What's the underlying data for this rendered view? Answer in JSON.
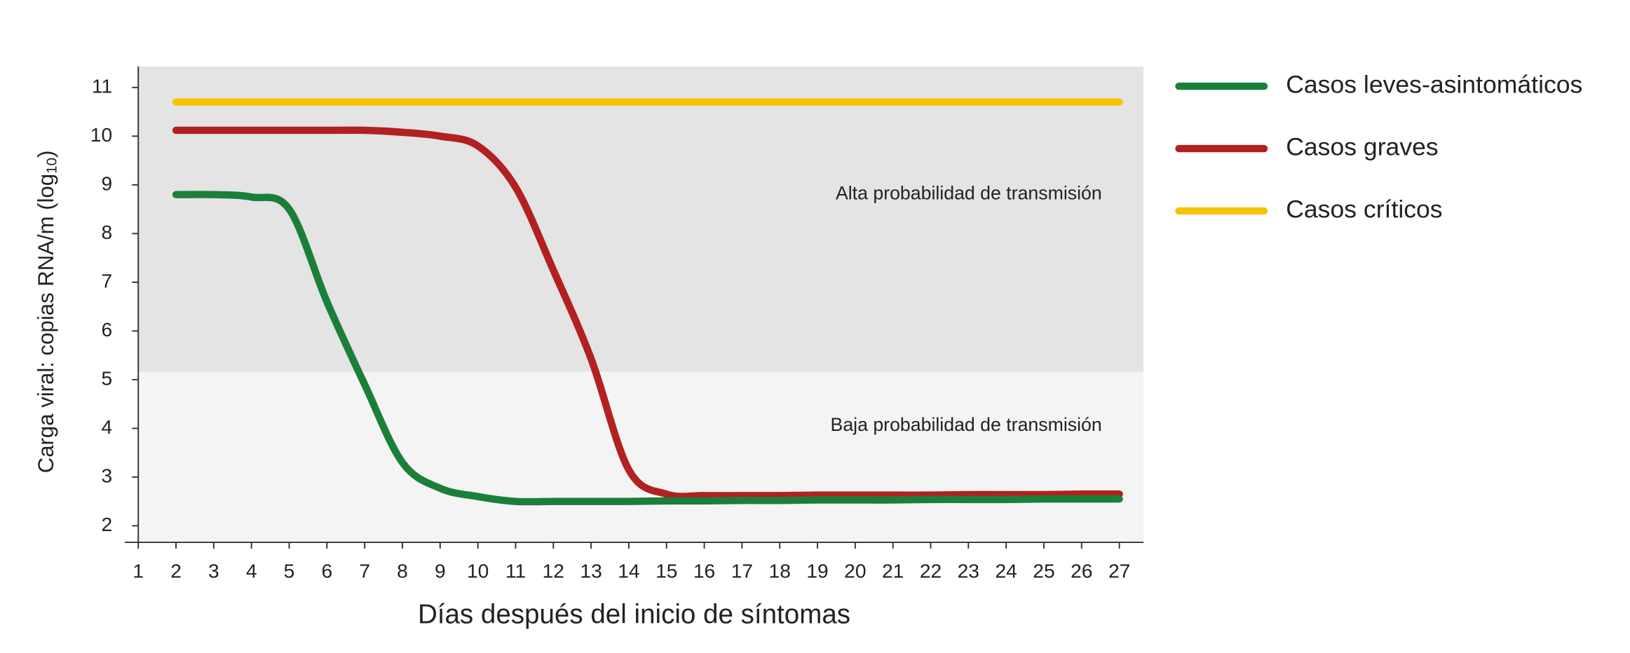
{
  "chart_data": {
    "type": "line",
    "y_label": [
      "Carga viral: copias RNA/m (log",
      "10",
      ")"
    ],
    "x_label": "Días después del inicio de síntomas",
    "xlim": [
      1,
      27.64
    ],
    "ylim": [
      1.66,
      11.43
    ],
    "xticks": [
      1,
      2,
      3,
      4,
      5,
      6,
      7,
      8,
      9,
      10,
      11,
      12,
      13,
      14,
      15,
      16,
      17,
      18,
      19,
      20,
      21,
      22,
      23,
      24,
      25,
      26,
      27
    ],
    "yticks": [
      2,
      3,
      4,
      5,
      6,
      7,
      8,
      9,
      10,
      11
    ],
    "regions": [
      {
        "label": "Alta probabilidad de transmisión",
        "from": 5.16,
        "to": 11.43,
        "color": "#e4e4e4"
      },
      {
        "label": "Baja probabilidad de transmisión",
        "from": 1.66,
        "to": 5.16,
        "color": "#f4f4f4"
      }
    ],
    "x": [
      2,
      3,
      4,
      5,
      6,
      7,
      8,
      9,
      10,
      11,
      12,
      13,
      14,
      15,
      16,
      17,
      18,
      19,
      20,
      21,
      22,
      23,
      24,
      25,
      26,
      27
    ],
    "series": [
      {
        "name": "Casos leves-asintomáticos",
        "color": "#1b7f3a",
        "values": [
          8.8,
          8.8,
          8.75,
          8.5,
          6.6,
          4.9,
          3.3,
          2.77,
          2.6,
          2.5,
          2.5,
          2.5,
          2.5,
          2.51,
          2.51,
          2.52,
          2.52,
          2.53,
          2.53,
          2.53,
          2.54,
          2.54,
          2.54,
          2.55,
          2.55,
          2.55
        ]
      },
      {
        "name": "Casos graves",
        "color": "#b2201f",
        "values": [
          10.12,
          10.12,
          10.12,
          10.12,
          10.12,
          10.12,
          10.08,
          10.0,
          9.8,
          8.95,
          7.25,
          5.43,
          3.15,
          2.65,
          2.62,
          2.62,
          2.62,
          2.63,
          2.63,
          2.63,
          2.63,
          2.64,
          2.64,
          2.64,
          2.65,
          2.65
        ]
      },
      {
        "name": "Casos críticos",
        "color": "#f7c400",
        "values": [
          10.7,
          10.7,
          10.7,
          10.7,
          10.7,
          10.7,
          10.7,
          10.7,
          10.7,
          10.7,
          10.7,
          10.7,
          10.7,
          10.7,
          10.7,
          10.7,
          10.7,
          10.7,
          10.7,
          10.7,
          10.7,
          10.7,
          10.7,
          10.7,
          10.7,
          10.7
        ]
      }
    ]
  }
}
